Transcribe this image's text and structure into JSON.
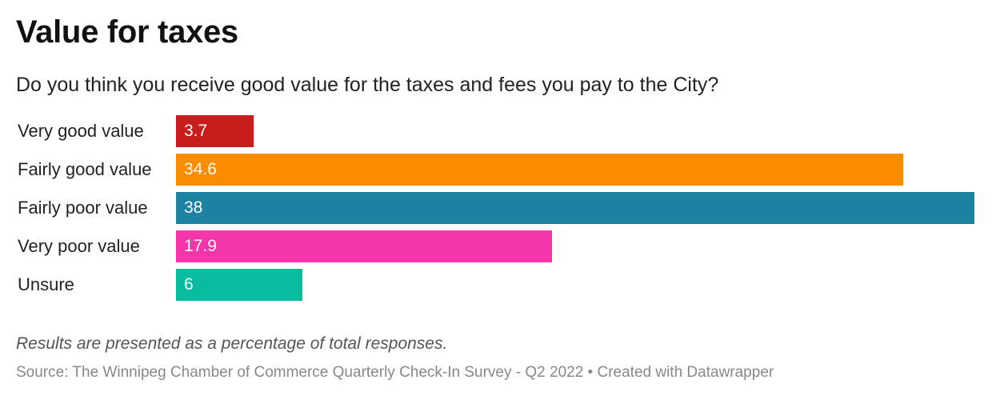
{
  "title": "Value for taxes",
  "subtitle": "Do you think you receive good value for the taxes and fees you pay to the City?",
  "note": "Results are presented as a percentage of total responses.",
  "source": "Source: The Winnipeg Chamber of Commerce Quarterly Check-In Survey - Q2 2022 • Created with Datawrapper",
  "chart_data": {
    "type": "bar",
    "orientation": "horizontal",
    "categories": [
      "Very good value",
      "Fairly good value",
      "Fairly poor value",
      "Very poor value",
      "Unsure"
    ],
    "values": [
      3.7,
      34.6,
      38,
      17.9,
      6
    ],
    "value_labels": [
      "3.7",
      "34.6",
      "38",
      "17.9",
      "6"
    ],
    "colors": [
      "#c71e1d",
      "#fa8c00",
      "#1d81a2",
      "#f535aa",
      "#09bb9f"
    ],
    "xlim": [
      0,
      38
    ],
    "grid": false
  }
}
